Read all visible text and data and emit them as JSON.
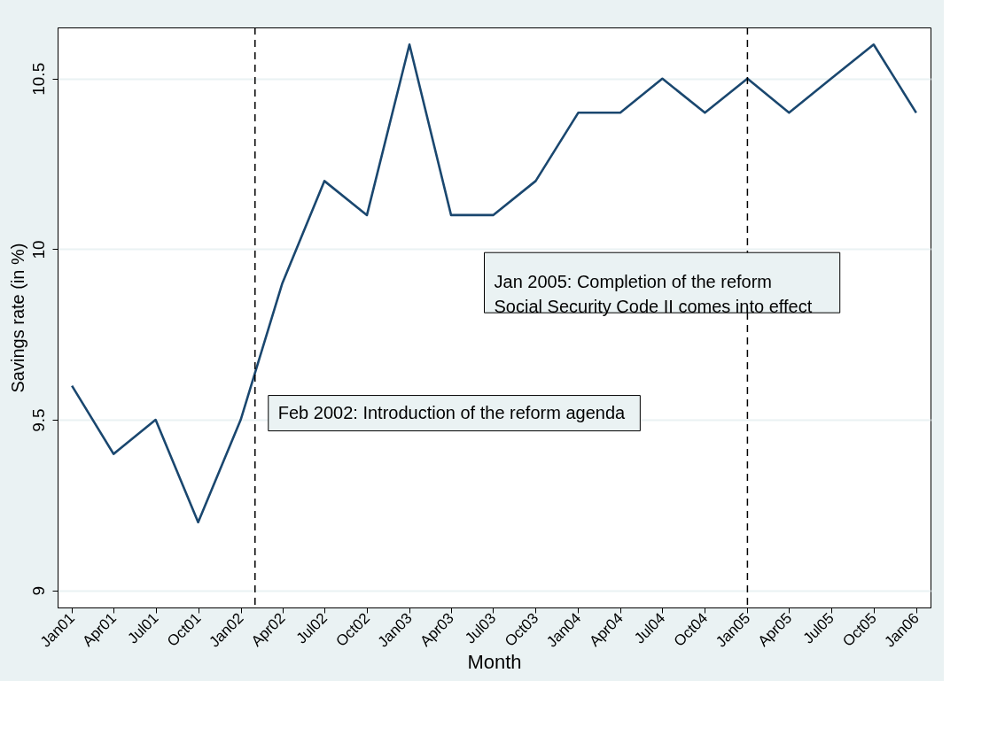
{
  "chart_data": {
    "type": "line",
    "xlabel": "Month",
    "ylabel": "Savings rate (in %)",
    "x": [
      "2001-01",
      "2001-04",
      "2001-07",
      "2001-10",
      "2002-01",
      "2002-04",
      "2002-07",
      "2002-10",
      "2003-01",
      "2003-04",
      "2003-07",
      "2003-10",
      "2004-01",
      "2004-04",
      "2004-07",
      "2004-10",
      "2005-01",
      "2005-04",
      "2005-07",
      "2005-10",
      "2006-01"
    ],
    "series": [
      {
        "color": "#1a476f",
        "values": [
          9.6,
          9.4,
          9.5,
          9.2,
          9.5,
          9.9,
          10.2,
          10.1,
          10.6,
          10.1,
          10.1,
          10.2,
          10.4,
          10.4,
          10.5,
          10.4,
          10.5,
          10.4,
          10.5,
          10.6,
          10.4
        ]
      }
    ],
    "xlim": [
      "2000-12",
      "2006-02"
    ],
    "xticks": [
      {
        "value": "2001-01",
        "label": "Jan01"
      },
      {
        "value": "2001-04",
        "label": "Apr01"
      },
      {
        "value": "2001-07",
        "label": "Jul01"
      },
      {
        "value": "2001-10",
        "label": "Oct01"
      },
      {
        "value": "2002-01",
        "label": "Jan02"
      },
      {
        "value": "2002-04",
        "label": "Apr02"
      },
      {
        "value": "2002-07",
        "label": "Jul02"
      },
      {
        "value": "2002-10",
        "label": "Oct02"
      },
      {
        "value": "2003-01",
        "label": "Jan03"
      },
      {
        "value": "2003-04",
        "label": "Apr03"
      },
      {
        "value": "2003-07",
        "label": "Jul03"
      },
      {
        "value": "2003-10",
        "label": "Oct03"
      },
      {
        "value": "2004-01",
        "label": "Jan04"
      },
      {
        "value": "2004-04",
        "label": "Apr04"
      },
      {
        "value": "2004-07",
        "label": "Jul04"
      },
      {
        "value": "2004-10",
        "label": "Oct04"
      },
      {
        "value": "2005-01",
        "label": "Jan05"
      },
      {
        "value": "2005-04",
        "label": "Apr05"
      },
      {
        "value": "2005-07",
        "label": "Jul05"
      },
      {
        "value": "2005-10",
        "label": "Oct05"
      },
      {
        "value": "2006-01",
        "label": "Jan06"
      }
    ],
    "ylim": [
      8.95,
      10.65
    ],
    "yticks": [
      {
        "value": 9,
        "label": "9"
      },
      9.5,
      {
        "value": 10,
        "label": "10"
      },
      10.5
    ],
    "grid": "y",
    "marker": "none",
    "line_style": "solid",
    "ref_lines": [
      {
        "axis": "x",
        "value": "2002-02",
        "color": "#000000",
        "line_style": "dashed"
      },
      {
        "axis": "x",
        "value": "2005-01",
        "color": "#000000",
        "line_style": "dashed"
      }
    ],
    "annotations": [
      "Feb 2002: Introduction of the reform agenda",
      "Jan 2005: Completion of the reform\nSocial Security Code II comes into effect"
    ]
  }
}
